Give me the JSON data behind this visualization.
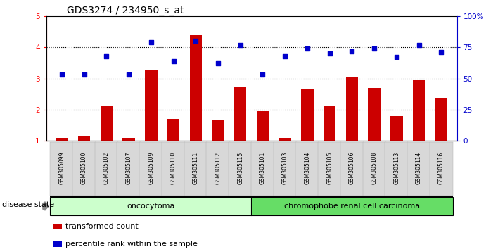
{
  "title": "GDS3274 / 234950_s_at",
  "samples": [
    "GSM305099",
    "GSM305100",
    "GSM305102",
    "GSM305107",
    "GSM305109",
    "GSM305110",
    "GSM305111",
    "GSM305112",
    "GSM305115",
    "GSM305101",
    "GSM305103",
    "GSM305104",
    "GSM305105",
    "GSM305106",
    "GSM305108",
    "GSM305113",
    "GSM305114",
    "GSM305116"
  ],
  "transformed_count": [
    1.1,
    1.15,
    2.1,
    1.1,
    3.25,
    1.7,
    4.4,
    1.65,
    2.75,
    1.95,
    1.1,
    2.65,
    2.1,
    3.05,
    2.7,
    1.8,
    2.95,
    2.35
  ],
  "percentile_rank": [
    53,
    53,
    68,
    53,
    79,
    64,
    80,
    62,
    77,
    53,
    68,
    74,
    70,
    72,
    74,
    67,
    77,
    71
  ],
  "bar_color": "#cc0000",
  "dot_color": "#0000cc",
  "ylim_left": [
    1,
    5
  ],
  "ylim_right": [
    0,
    100
  ],
  "yticks_left": [
    1,
    2,
    3,
    4,
    5
  ],
  "yticks_right": [
    0,
    25,
    50,
    75,
    100
  ],
  "ytick_labels_right": [
    "0",
    "25",
    "50",
    "75",
    "100%"
  ],
  "group1_label": "oncocytoma",
  "group2_label": "chromophobe renal cell carcinoma",
  "group1_count": 9,
  "group2_count": 9,
  "disease_state_label": "disease state",
  "legend_bar_label": "transformed count",
  "legend_dot_label": "percentile rank within the sample",
  "group1_color": "#ccffcc",
  "group2_color": "#66dd66",
  "title_fontsize": 10,
  "bar_width": 0.55
}
